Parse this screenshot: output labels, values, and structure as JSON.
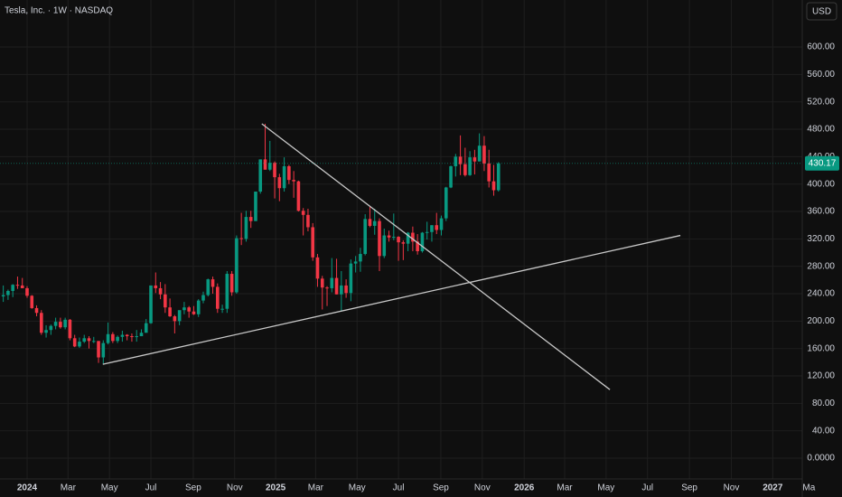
{
  "chart_data": {
    "type": "candlestick",
    "title": "Tesla, Inc. · 1W · NASDAQ",
    "currency": "USD",
    "colors": {
      "up": "#089981",
      "down": "#f23645",
      "trendline": "#c8c8c8",
      "grid": "#1f1f1f"
    },
    "grid": true,
    "ylim": [
      -30.3,
      668.6
    ],
    "yticks": [
      {
        "value": 0,
        "label": "0.0000"
      },
      {
        "value": 40,
        "label": "40.00"
      },
      {
        "value": 80,
        "label": "80.00"
      },
      {
        "value": 120,
        "label": "120.00"
      },
      {
        "value": 160,
        "label": "160.00"
      },
      {
        "value": 200,
        "label": "200.00"
      },
      {
        "value": 240,
        "label": "240.00"
      },
      {
        "value": 280,
        "label": "280.00"
      },
      {
        "value": 320,
        "label": "320.00"
      },
      {
        "value": 360,
        "label": "360.00"
      },
      {
        "value": 400,
        "label": "400.00"
      },
      {
        "value": 440,
        "label": "440.00"
      },
      {
        "value": 480,
        "label": "480.00"
      },
      {
        "value": 520,
        "label": "520.00"
      },
      {
        "value": 560,
        "label": "560.00"
      },
      {
        "value": 600,
        "label": "600.00"
      }
    ],
    "xlim": [
      -5.69,
      162.8
    ],
    "xticks": [
      {
        "value": 0,
        "label": "2024"
      },
      {
        "value": 8.6,
        "label": "Mar"
      },
      {
        "value": 17.3,
        "label": "May"
      },
      {
        "value": 26,
        "label": "Jul"
      },
      {
        "value": 34.9,
        "label": "Sep"
      },
      {
        "value": 43.6,
        "label": "Nov"
      },
      {
        "value": 52.2,
        "label": "2025"
      },
      {
        "value": 60.6,
        "label": "Mar"
      },
      {
        "value": 69.3,
        "label": "May"
      },
      {
        "value": 78,
        "label": "Jul"
      },
      {
        "value": 86.9,
        "label": "Sep"
      },
      {
        "value": 95.6,
        "label": "Nov"
      },
      {
        "value": 104.4,
        "label": "2026"
      },
      {
        "value": 112.9,
        "label": "Mar"
      },
      {
        "value": 121.6,
        "label": "May"
      },
      {
        "value": 130.3,
        "label": "Jul"
      },
      {
        "value": 139.1,
        "label": "Sep"
      },
      {
        "value": 147.9,
        "label": "Nov"
      },
      {
        "value": 156.6,
        "label": "2027"
      },
      {
        "value": 164.2,
        "label": "Ma"
      }
    ],
    "x": [
      -5,
      -4,
      -3,
      -2,
      -1,
      0,
      1,
      2,
      3,
      4,
      5,
      6,
      7,
      8,
      9,
      10,
      11,
      12,
      13,
      14,
      15,
      16,
      17,
      18,
      19,
      20,
      21,
      22,
      23,
      24,
      25,
      26,
      27,
      28,
      29,
      30,
      31,
      32,
      33,
      34,
      35,
      36,
      37,
      38,
      39,
      40,
      41,
      42,
      43,
      44,
      45,
      46,
      47,
      48,
      49,
      50,
      51,
      52,
      53,
      54,
      55,
      56,
      57,
      58,
      59,
      60,
      61,
      62,
      63,
      64,
      65,
      66,
      67,
      68,
      69,
      70,
      71,
      72,
      73,
      74,
      75,
      76,
      77,
      78,
      79,
      80,
      81,
      82,
      83,
      84,
      85,
      86,
      87,
      88,
      89,
      90,
      91,
      92,
      93,
      94,
      95,
      96,
      97,
      98,
      99
    ],
    "open": [
      236,
      238,
      244,
      253,
      252,
      248,
      237,
      219,
      212,
      183,
      187,
      193,
      199,
      191,
      202,
      175,
      163,
      170,
      175,
      171,
      171,
      147,
      168,
      181,
      171,
      177,
      180,
      178,
      177,
      178,
      183,
      197,
      252,
      248,
      239,
      220,
      207,
      200,
      216,
      220,
      214,
      210,
      230,
      238,
      261,
      250,
      218,
      218,
      269,
      242,
      321,
      320,
      352,
      346,
      389,
      436,
      421,
      431,
      410,
      394,
      426,
      406,
      404,
      361,
      355,
      337,
      293,
      262,
      249,
      248,
      263,
      239,
      252,
      241,
      284,
      287,
      298,
      349,
      339,
      346,
      295,
      325,
      322,
      323,
      315,
      313,
      329,
      316,
      302,
      329,
      330,
      340,
      333,
      350,
      395,
      426,
      440,
      429,
      413,
      439,
      433,
      456,
      430,
      404,
      391
    ],
    "high": [
      252,
      246,
      254,
      265,
      263,
      251,
      238,
      223,
      216,
      194,
      195,
      205,
      205,
      205,
      203,
      180,
      176,
      180,
      178,
      177,
      171,
      172,
      198,
      184,
      179,
      186,
      181,
      182,
      187,
      188,
      203,
      252,
      271,
      257,
      254,
      233,
      209,
      215,
      228,
      222,
      222,
      232,
      243,
      262,
      265,
      255,
      224,
      273,
      273,
      325,
      358,
      361,
      361,
      389,
      436,
      488,
      463,
      433,
      415,
      439,
      428,
      419,
      405,
      365,
      364,
      343,
      298,
      266,
      251,
      292,
      291,
      273,
      261,
      290,
      295,
      307,
      356,
      367,
      364,
      350,
      335,
      332,
      357,
      324,
      318,
      330,
      338,
      327,
      330,
      345,
      340,
      358,
      354,
      396,
      427,
      444,
      471,
      453,
      448,
      450,
      474,
      470,
      450,
      428,
      432
    ],
    "low": [
      228,
      231,
      235,
      247,
      248,
      234,
      218,
      207,
      180,
      176,
      180,
      188,
      189,
      188,
      172,
      162,
      161,
      168,
      160,
      168,
      139,
      138,
      166,
      168,
      168,
      170,
      172,
      170,
      170,
      178,
      183,
      196,
      241,
      232,
      212,
      206,
      182,
      194,
      210,
      205,
      209,
      206,
      226,
      236,
      240,
      212,
      212,
      212,
      237,
      240,
      311,
      316,
      336,
      346,
      386,
      421,
      419,
      379,
      375,
      389,
      400,
      380,
      360,
      325,
      331,
      288,
      250,
      217,
      222,
      242,
      239,
      214,
      234,
      229,
      271,
      272,
      296,
      337,
      326,
      273,
      292,
      316,
      318,
      288,
      289,
      302,
      302,
      297,
      300,
      319,
      316,
      327,
      325,
      346,
      394,
      411,
      413,
      411,
      412,
      414,
      433,
      419,
      395,
      383,
      389
    ],
    "close": [
      238,
      244,
      253,
      252,
      248,
      237,
      219,
      212,
      183,
      187,
      193,
      199,
      191,
      202,
      175,
      163,
      170,
      175,
      171,
      171,
      147,
      168,
      181,
      171,
      177,
      180,
      178,
      177,
      178,
      183,
      197,
      252,
      248,
      239,
      220,
      207,
      200,
      216,
      220,
      214,
      210,
      230,
      238,
      261,
      250,
      218,
      218,
      269,
      242,
      321,
      320,
      352,
      346,
      389,
      436,
      421,
      431,
      410,
      394,
      426,
      406,
      404,
      361,
      355,
      337,
      293,
      262,
      249,
      248,
      263,
      239,
      252,
      241,
      284,
      287,
      298,
      349,
      339,
      346,
      295,
      325,
      322,
      323,
      315,
      313,
      329,
      316,
      302,
      329,
      330,
      340,
      333,
      350,
      395,
      426,
      440,
      429,
      413,
      439,
      433,
      456,
      430,
      404,
      391,
      430.17
    ],
    "trendlines": [
      {
        "x": [
          15.9,
          137.2
        ],
        "y": [
          137,
          325
        ]
      },
      {
        "x": [
          49.3,
          122.4
        ],
        "y": [
          488,
          100
        ]
      }
    ]
  }
}
